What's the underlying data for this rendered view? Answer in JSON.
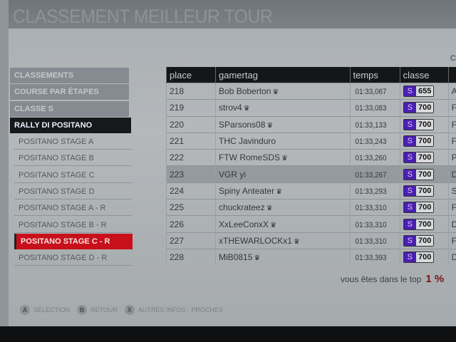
{
  "title": "CLASSEMENT MEILLEUR TOUR",
  "corner_text": "C",
  "sidebar": {
    "headers": [
      "CLASSEMENTS",
      "COURSE PAR ÉTAPES",
      "CLASSE S"
    ],
    "active": "RALLY DI POSITANO",
    "items": [
      "POSITANO STAGE A",
      "POSITANO STAGE B",
      "POSITANO STAGE C",
      "POSITANO STAGE D",
      "POSITANO STAGE A - R",
      "POSITANO STAGE B - R",
      "POSITANO STAGE C - R",
      "POSITANO STAGE D - R"
    ],
    "selected_index": 6
  },
  "table": {
    "columns": [
      "place",
      "gamertag",
      "temps",
      "classe",
      ""
    ],
    "rows": [
      {
        "place": "218",
        "gamertag": "Bob Boberton",
        "crown": true,
        "temps": "01:33,067",
        "class": "S",
        "pi": "655",
        "extra": "A"
      },
      {
        "place": "219",
        "gamertag": "strov4",
        "crown": true,
        "temps": "01:33,083",
        "class": "S",
        "pi": "700",
        "extra": "F"
      },
      {
        "place": "220",
        "gamertag": "SParsons08",
        "crown": true,
        "temps": "01:33,133",
        "class": "S",
        "pi": "700",
        "extra": "F"
      },
      {
        "place": "221",
        "gamertag": "THC Javinduro",
        "crown": false,
        "temps": "01:33,243",
        "class": "S",
        "pi": "700",
        "extra": "F"
      },
      {
        "place": "222",
        "gamertag": "FTW RomeSDS",
        "crown": true,
        "temps": "01:33,260",
        "class": "S",
        "pi": "700",
        "extra": "P"
      },
      {
        "place": "223",
        "gamertag": "VGR yi",
        "crown": false,
        "temps": "01:33,267",
        "class": "S",
        "pi": "700",
        "extra": "D",
        "highlight": true
      },
      {
        "place": "224",
        "gamertag": "Spiny Anteater",
        "crown": true,
        "temps": "01:33,293",
        "class": "S",
        "pi": "700",
        "extra": "S"
      },
      {
        "place": "225",
        "gamertag": "chuckrateez",
        "crown": true,
        "temps": "01:33,310",
        "class": "S",
        "pi": "700",
        "extra": "Fo"
      },
      {
        "place": "226",
        "gamertag": "XxLeeConxX",
        "crown": true,
        "temps": "01:33,310",
        "class": "S",
        "pi": "700",
        "extra": "Do"
      },
      {
        "place": "227",
        "gamertag": "xTHEWARLOCKx1",
        "crown": true,
        "temps": "01:33,310",
        "class": "S",
        "pi": "700",
        "extra": "Fo"
      },
      {
        "place": "228",
        "gamertag": "MiB0815",
        "crown": true,
        "temps": "01:33,393",
        "class": "S",
        "pi": "700",
        "extra": "Do"
      }
    ]
  },
  "top": {
    "label": "vous êtes dans le top",
    "value": "1 %"
  },
  "footer": [
    {
      "key": "A",
      "label": "SÉLECTION"
    },
    {
      "key": "B",
      "label": "RETOUR"
    },
    {
      "key": "X",
      "label": "AUTRES INFOS - PROCHES"
    }
  ],
  "colors": {
    "selected": "#c8101a",
    "class_s": "#4a1fb0",
    "active": "#16181a"
  }
}
